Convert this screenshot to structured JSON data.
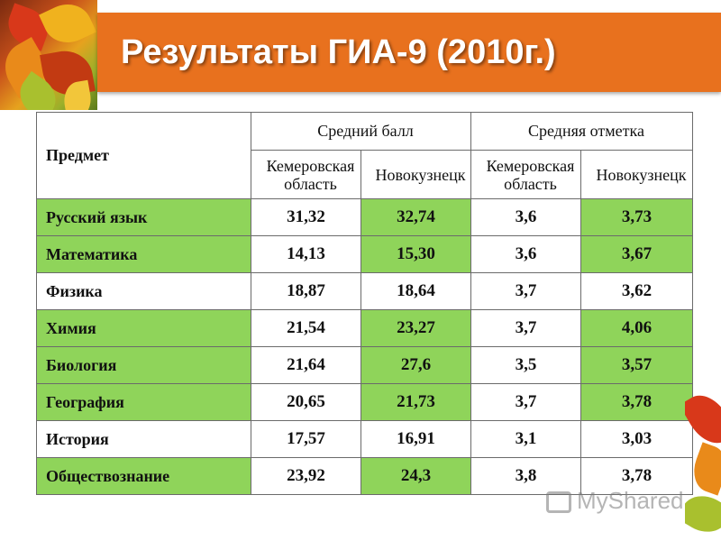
{
  "title": "Результаты ГИА-9 (2010г.)",
  "table": {
    "header": {
      "subject": "Предмет",
      "avg_score": "Средний балл",
      "avg_grade": "Средняя отметка",
      "region": "Кемеровская область",
      "city": "Новокузнецк"
    },
    "rows": [
      {
        "subject": "Русский язык",
        "score_region": "31,32",
        "score_city": "32,74",
        "grade_region": "3,6",
        "grade_city": "3,73"
      },
      {
        "subject": "Математика",
        "score_region": "14,13",
        "score_city": "15,30",
        "grade_region": "3,6",
        "grade_city": "3,67"
      },
      {
        "subject": "Физика",
        "score_region": "18,87",
        "score_city": "18,64",
        "grade_region": "3,7",
        "grade_city": "3,62"
      },
      {
        "subject": "Химия",
        "score_region": "21,54",
        "score_city": "23,27",
        "grade_region": "3,7",
        "grade_city": "4,06"
      },
      {
        "subject": "Биология",
        "score_region": "21,64",
        "score_city": "27,6",
        "grade_region": "3,5",
        "grade_city": "3,57"
      },
      {
        "subject": "География",
        "score_region": "20,65",
        "score_city": "21,73",
        "grade_region": "3,7",
        "grade_city": "3,78"
      },
      {
        "subject": "История",
        "score_region": "17,57",
        "score_city": "16,91",
        "grade_region": "3,1",
        "grade_city": "3,03"
      },
      {
        "subject": "Обществознание",
        "score_region": "23,92",
        "score_city": "24,3",
        "grade_region": "3,8",
        "grade_city": "3,78"
      }
    ]
  },
  "watermark": "MyShared",
  "colors": {
    "title_bar": "#e8711e",
    "row_green": "#8fd45a"
  }
}
